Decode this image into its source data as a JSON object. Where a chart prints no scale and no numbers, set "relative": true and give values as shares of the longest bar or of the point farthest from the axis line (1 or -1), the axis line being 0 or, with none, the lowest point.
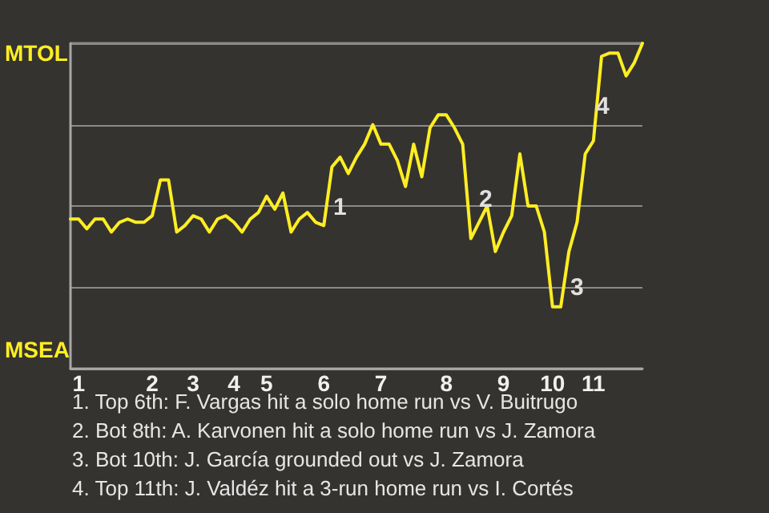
{
  "chart_data": {
    "type": "line",
    "relative": true,
    "categories": [
      null,
      "1",
      null,
      null,
      null,
      null,
      null,
      null,
      null,
      null,
      "2",
      null,
      null,
      null,
      null,
      "3",
      null,
      null,
      null,
      null,
      "4",
      null,
      null,
      null,
      "5",
      null,
      null,
      null,
      null,
      null,
      null,
      "6",
      null,
      null,
      null,
      null,
      null,
      null,
      "7",
      null,
      null,
      null,
      null,
      null,
      null,
      null,
      "8",
      null,
      null,
      null,
      null,
      null,
      null,
      "9",
      null,
      null,
      null,
      null,
      null,
      "10",
      null,
      null,
      null,
      null,
      "11",
      null,
      null,
      null,
      null,
      null,
      null
    ],
    "series": [
      {
        "color": "#ffee22",
        "values": [
          0.46,
          0.46,
          0.43,
          0.46,
          0.46,
          0.42,
          0.45,
          0.46,
          0.45,
          0.45,
          0.47,
          0.58,
          0.58,
          0.42,
          0.44,
          0.47,
          0.46,
          0.42,
          0.46,
          0.47,
          0.45,
          0.42,
          0.46,
          0.48,
          0.53,
          0.49,
          0.54,
          0.42,
          0.46,
          0.48,
          0.45,
          0.44,
          0.62,
          0.65,
          0.6,
          0.65,
          0.69,
          0.75,
          0.69,
          0.69,
          0.64,
          0.56,
          0.69,
          0.59,
          0.74,
          0.78,
          0.78,
          0.74,
          0.69,
          0.4,
          0.45,
          0.5,
          0.36,
          0.42,
          0.47,
          0.66,
          0.5,
          0.5,
          0.42,
          0.19,
          0.19,
          0.36,
          0.45,
          0.66,
          0.7,
          0.96,
          0.97,
          0.97,
          0.9,
          0.94,
          1.0
        ]
      }
    ],
    "grid": "y",
    "marker": "none",
    "line_style": "solid",
    "annotations": [
      "MTOL",
      "MSEA",
      "1",
      "2",
      "3",
      "4",
      "1. Top 6th: F. Vargas hit a solo home run vs V. Buitrugo",
      "2. Bot 8th: A. Karvonen hit a solo home run vs J. Zamora",
      "3. Bot 10th: J. García grounded out vs J. Zamora",
      "4. Top 11th: J. Valdéz hit a 3-run home run vs I. Cortés"
    ]
  }
}
